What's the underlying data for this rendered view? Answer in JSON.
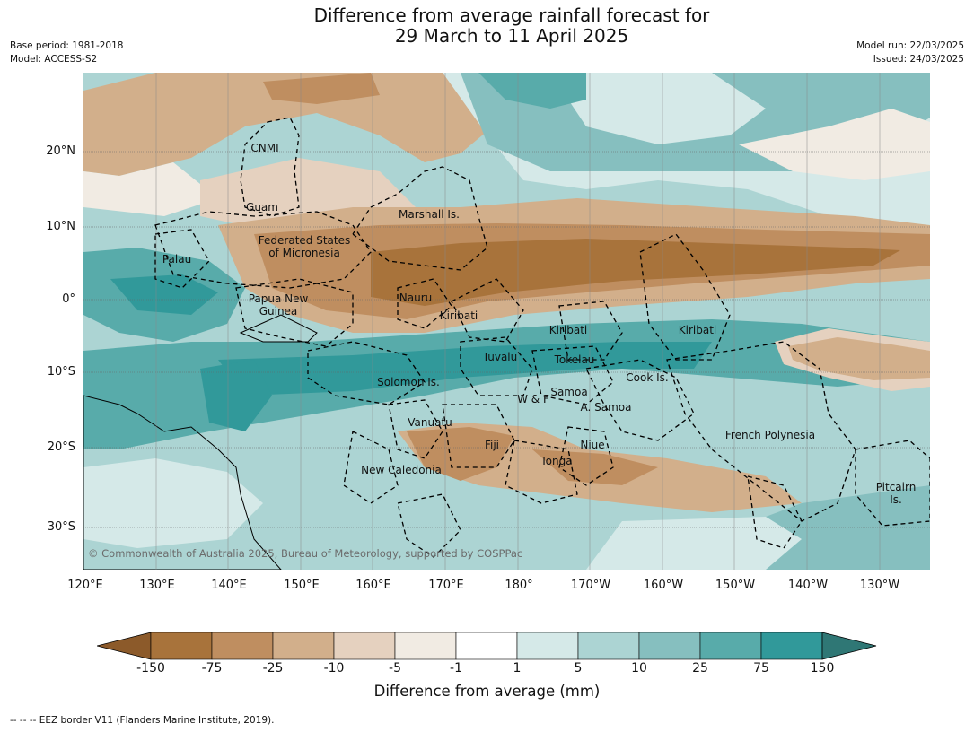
{
  "title_line1": "Difference from average rainfall forecast for",
  "title_line2": "29 March to 11 April 2025",
  "meta_left": {
    "base_period": "Base period: 1981-2018",
    "model": "Model: ACCESS-S2"
  },
  "meta_right": {
    "model_run": "Model run: 22/03/2025",
    "issued": "Issued: 24/03/2025"
  },
  "map": {
    "lat_ticks": [
      "20°N",
      "10°N",
      "0°",
      "10°S",
      "20°S",
      "30°S"
    ],
    "lon_ticks": [
      "120°E",
      "130°E",
      "140°E",
      "150°E",
      "160°E",
      "170°E",
      "180°",
      "170°W",
      "160°W",
      "150°W",
      "140°W",
      "130°W"
    ],
    "labels": {
      "cnmi": "CNMI",
      "guam": "Guam",
      "marshall": "Marshall Is.",
      "fsm_1": "Federated States",
      "fsm_2": "of Micronesia",
      "palau": "Palau",
      "png_1": "Papua New",
      "png_2": "Guinea",
      "nauru": "Nauru",
      "kiribati_w": "Kiribati",
      "kiribati_c": "Kiribati",
      "kiribati_e": "Kiribati",
      "tuvalu": "Tuvalu",
      "tokelau": "Tokelau",
      "cook": "Cook Is.",
      "solomon": "Solomon Is.",
      "samoa": "Samoa",
      "wf": "W & F",
      "asamoa": "A. Samoa",
      "vanuatu": "Vanuatu",
      "fiji": "Fiji",
      "niue": "Niue",
      "tonga": "Tonga",
      "frpoly": "French Polynesia",
      "newcal": "New Caledonia",
      "pitcairn_1": "Pitcairn",
      "pitcairn_2": "Is."
    },
    "copyright": "© Commonwealth of Australia 2025, Bureau of Meteorology, supported by COSPPac"
  },
  "colorbar": {
    "labels": [
      "-150",
      "-75",
      "-25",
      "-10",
      "-5",
      "-1",
      "1",
      "5",
      "10",
      "25",
      "75",
      "150"
    ],
    "colors": [
      "#8c5a2a",
      "#a8733b",
      "#bf8e60",
      "#d2af8b",
      "#e5d1bf",
      "#f1ebe3",
      "#ffffff",
      "#d5e9e8",
      "#acd4d3",
      "#86bfbf",
      "#58abaa",
      "#31999a",
      "#2f7775"
    ],
    "title": "Difference from average (mm)"
  },
  "footnote": "--  --  -- EEZ border V11 (Flanders Marine Institute, 2019)."
}
